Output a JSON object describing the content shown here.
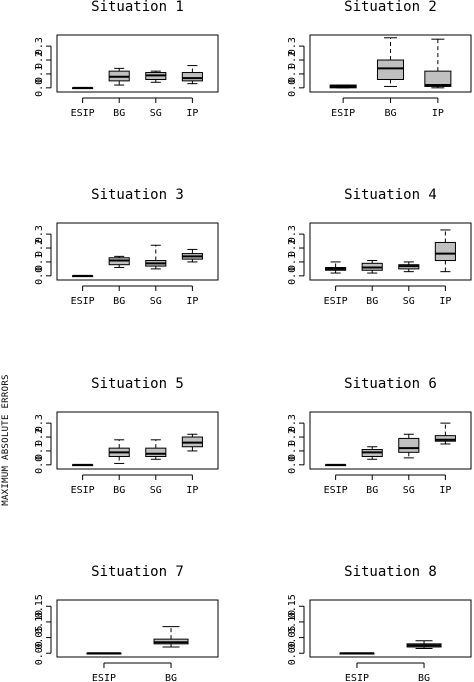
{
  "figure": {
    "ylabel": "MAXIMUM ABSOLUTE ERRORS"
  },
  "chart_data": [
    {
      "type": "box",
      "title": "Situation 1",
      "categories": [
        "ESIP",
        "BG",
        "SG",
        "IP"
      ],
      "yticks": [
        "0.0",
        "0.1",
        "0.2",
        "0.3"
      ],
      "ylim": [
        -0.03,
        0.38
      ],
      "boxes": [
        {
          "whisker_low": 0.0,
          "q1": 0.0,
          "median": 0.0,
          "q3": 0.0,
          "whisker_high": 0.0,
          "color": "#000000"
        },
        {
          "whisker_low": 0.02,
          "q1": 0.05,
          "median": 0.08,
          "q3": 0.12,
          "whisker_high": 0.14,
          "color": "#c0c0c0"
        },
        {
          "whisker_low": 0.04,
          "q1": 0.06,
          "median": 0.09,
          "q3": 0.11,
          "whisker_high": 0.12,
          "color": "#c0c0c0"
        },
        {
          "whisker_low": 0.03,
          "q1": 0.05,
          "median": 0.07,
          "q3": 0.11,
          "whisker_high": 0.16,
          "color": "#c0c0c0"
        }
      ]
    },
    {
      "type": "box",
      "title": "Situation 2",
      "categories": [
        "ESIP",
        "BG",
        "IP"
      ],
      "yticks": [
        "0.0",
        "0.1",
        "0.2",
        "0.3"
      ],
      "ylim": [
        -0.03,
        0.38
      ],
      "boxes": [
        {
          "whisker_low": 0.0,
          "q1": 0.0,
          "median": 0.01,
          "q3": 0.02,
          "whisker_high": 0.02,
          "color": "#000000"
        },
        {
          "whisker_low": 0.01,
          "q1": 0.06,
          "median": 0.14,
          "q3": 0.2,
          "whisker_high": 0.36,
          "color": "#c0c0c0"
        },
        {
          "whisker_low": 0.0,
          "q1": 0.01,
          "median": 0.02,
          "q3": 0.12,
          "whisker_high": 0.35,
          "color": "#c0c0c0"
        }
      ]
    },
    {
      "type": "box",
      "title": "Situation 3",
      "categories": [
        "ESIP",
        "BG",
        "SG",
        "IP"
      ],
      "yticks": [
        "0.0",
        "0.1",
        "0.2",
        "0.3"
      ],
      "ylim": [
        -0.03,
        0.38
      ],
      "boxes": [
        {
          "whisker_low": 0.0,
          "q1": 0.0,
          "median": 0.0,
          "q3": 0.0,
          "whisker_high": 0.0,
          "color": "#000000"
        },
        {
          "whisker_low": 0.06,
          "q1": 0.08,
          "median": 0.11,
          "q3": 0.13,
          "whisker_high": 0.14,
          "color": "#c0c0c0"
        },
        {
          "whisker_low": 0.05,
          "q1": 0.07,
          "median": 0.09,
          "q3": 0.11,
          "whisker_high": 0.22,
          "color": "#c0c0c0"
        },
        {
          "whisker_low": 0.1,
          "q1": 0.12,
          "median": 0.14,
          "q3": 0.16,
          "whisker_high": 0.19,
          "color": "#c0c0c0"
        }
      ]
    },
    {
      "type": "box",
      "title": "Situation 4",
      "categories": [
        "ESIP",
        "BG",
        "SG",
        "IP"
      ],
      "yticks": [
        "0.0",
        "0.1",
        "0.2",
        "0.3"
      ],
      "ylim": [
        -0.03,
        0.38
      ],
      "boxes": [
        {
          "whisker_low": 0.02,
          "q1": 0.04,
          "median": 0.05,
          "q3": 0.06,
          "whisker_high": 0.1,
          "color": "#c0c0c0"
        },
        {
          "whisker_low": 0.02,
          "q1": 0.04,
          "median": 0.06,
          "q3": 0.09,
          "whisker_high": 0.11,
          "color": "#c0c0c0"
        },
        {
          "whisker_low": 0.03,
          "q1": 0.05,
          "median": 0.07,
          "q3": 0.08,
          "whisker_high": 0.1,
          "color": "#c0c0c0"
        },
        {
          "whisker_low": 0.03,
          "q1": 0.11,
          "median": 0.16,
          "q3": 0.24,
          "whisker_high": 0.33,
          "color": "#c0c0c0"
        }
      ]
    },
    {
      "type": "box",
      "title": "Situation 5",
      "categories": [
        "ESIP",
        "BG",
        "SG",
        "IP"
      ],
      "yticks": [
        "0.0",
        "0.1",
        "0.2",
        "0.3"
      ],
      "ylim": [
        -0.03,
        0.38
      ],
      "boxes": [
        {
          "whisker_low": 0.0,
          "q1": 0.0,
          "median": 0.0,
          "q3": 0.0,
          "whisker_high": 0.0,
          "color": "#000000"
        },
        {
          "whisker_low": 0.01,
          "q1": 0.06,
          "median": 0.09,
          "q3": 0.12,
          "whisker_high": 0.18,
          "color": "#c0c0c0"
        },
        {
          "whisker_low": 0.04,
          "q1": 0.06,
          "median": 0.08,
          "q3": 0.12,
          "whisker_high": 0.18,
          "color": "#c0c0c0"
        },
        {
          "whisker_low": 0.1,
          "q1": 0.13,
          "median": 0.16,
          "q3": 0.2,
          "whisker_high": 0.22,
          "color": "#c0c0c0"
        }
      ]
    },
    {
      "type": "box",
      "title": "Situation 6",
      "categories": [
        "ESIP",
        "BG",
        "SG",
        "IP"
      ],
      "yticks": [
        "0.0",
        "0.1",
        "0.2",
        "0.3"
      ],
      "ylim": [
        -0.03,
        0.38
      ],
      "boxes": [
        {
          "whisker_low": 0.0,
          "q1": 0.0,
          "median": 0.0,
          "q3": 0.0,
          "whisker_high": 0.0,
          "color": "#000000"
        },
        {
          "whisker_low": 0.04,
          "q1": 0.06,
          "median": 0.09,
          "q3": 0.11,
          "whisker_high": 0.13,
          "color": "#c0c0c0"
        },
        {
          "whisker_low": 0.05,
          "q1": 0.09,
          "median": 0.12,
          "q3": 0.19,
          "whisker_high": 0.22,
          "color": "#c0c0c0"
        },
        {
          "whisker_low": 0.15,
          "q1": 0.17,
          "median": 0.18,
          "q3": 0.21,
          "whisker_high": 0.3,
          "color": "#c0c0c0"
        }
      ]
    },
    {
      "type": "box",
      "title": "Situation 7",
      "categories": [
        "ESIP",
        "BG"
      ],
      "yticks": [
        "0.00",
        "0.05",
        "0.10",
        "0.15"
      ],
      "ylim": [
        -0.012,
        0.17
      ],
      "boxes": [
        {
          "whisker_low": 0.0,
          "q1": 0.0,
          "median": 0.0,
          "q3": 0.0,
          "whisker_high": 0.0,
          "color": "#000000"
        },
        {
          "whisker_low": 0.02,
          "q1": 0.03,
          "median": 0.035,
          "q3": 0.045,
          "whisker_high": 0.085,
          "color": "#c0c0c0"
        }
      ]
    },
    {
      "type": "box",
      "title": "Situation 8",
      "categories": [
        "ESIP",
        "BG"
      ],
      "yticks": [
        "0.00",
        "0.05",
        "0.10",
        "0.15"
      ],
      "ylim": [
        -0.012,
        0.17
      ],
      "boxes": [
        {
          "whisker_low": 0.0,
          "q1": 0.0,
          "median": 0.0,
          "q3": 0.0,
          "whisker_high": 0.0,
          "color": "#000000"
        },
        {
          "whisker_low": 0.015,
          "q1": 0.02,
          "median": 0.025,
          "q3": 0.03,
          "whisker_high": 0.04,
          "color": "#c0c0c0"
        }
      ]
    }
  ]
}
